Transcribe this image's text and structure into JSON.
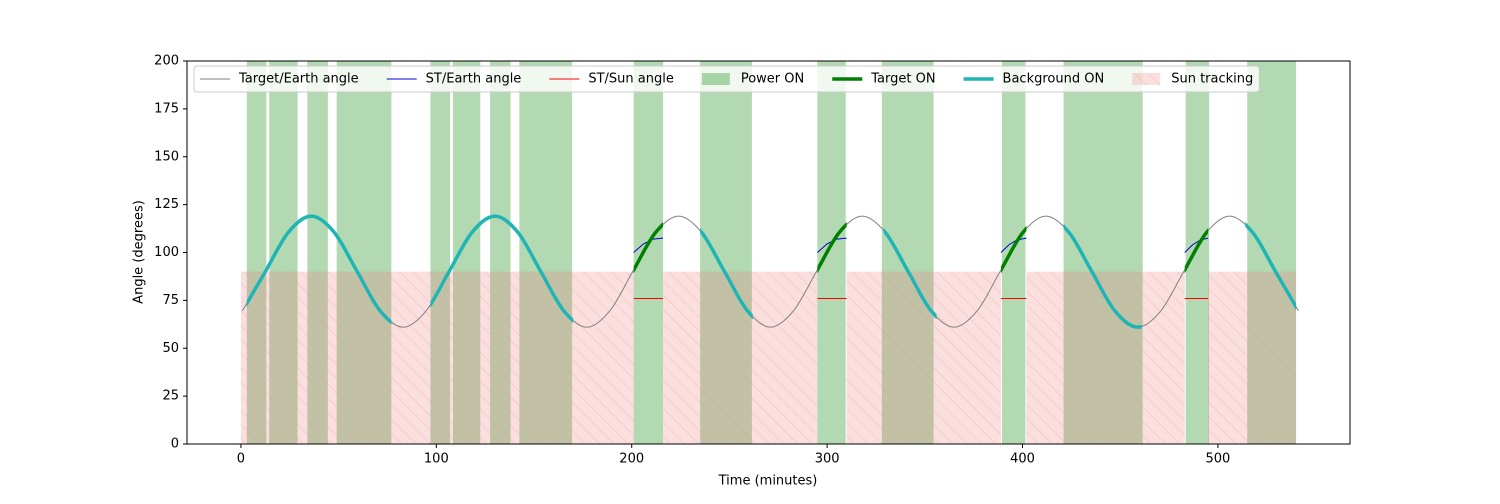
{
  "chart_data": {
    "type": "line",
    "xlabel": "Time (minutes)",
    "ylabel": "Angle (degrees)",
    "xlim": [
      -27.6,
      567.6
    ],
    "ylim": [
      0,
      200
    ],
    "xticks": [
      0,
      100,
      200,
      300,
      400,
      500
    ],
    "yticks": [
      0,
      25,
      50,
      75,
      100,
      125,
      150,
      175,
      200
    ],
    "legend": "upper center",
    "series": [
      {
        "name": "Target/Earth angle",
        "kind": "line",
        "color": "#808080",
        "x": [
          0.75,
          12.5,
          24.25,
          36,
          47.75,
          59.5,
          71.25,
          83,
          94.75,
          106.5,
          118.25,
          130,
          141.75,
          153.5,
          165.25,
          177,
          188.75,
          200.5,
          212.25,
          224,
          235.75,
          247.5,
          259.25,
          271,
          282.75,
          294.5,
          306.25,
          318,
          329.75,
          341.5,
          353.25,
          365,
          376.75,
          388.5,
          400.25,
          412,
          423.75,
          435.5,
          447.25,
          459,
          470.75,
          482.5,
          494.25,
          506,
          517.75,
          529.5,
          541.25
        ],
        "values": [
          69.5,
          90,
          110.5,
          119,
          110.5,
          90,
          69.5,
          61,
          69.5,
          90,
          110.5,
          119,
          110.5,
          90,
          69.5,
          61,
          69.5,
          90,
          110.5,
          119,
          110.5,
          90,
          69.5,
          61,
          69.5,
          90,
          110.5,
          119,
          110.5,
          90,
          69.5,
          61,
          69.5,
          90,
          110.5,
          119,
          110.5,
          90,
          69.5,
          61,
          69.5,
          90,
          110.5,
          119,
          110.5,
          90,
          69.5
        ]
      },
      {
        "name": "ST/Earth angle",
        "kind": "line",
        "color": "#0000cc",
        "x": [
          201,
          206,
          211,
          216,
          null,
          295,
          300,
          305,
          310,
          null,
          389,
          393,
          397,
          402,
          null,
          483,
          487,
          491,
          495
        ],
        "values": [
          100,
          104.5,
          107,
          107.5,
          null,
          100,
          104.5,
          107,
          107.5,
          null,
          100,
          104,
          106.5,
          107.5,
          null,
          100,
          104,
          106.5,
          107.5
        ]
      },
      {
        "name": "ST/Sun angle",
        "kind": "line",
        "color": "#ff0000",
        "x": [
          201,
          216,
          null,
          295,
          310,
          null,
          389,
          402,
          null,
          483,
          495
        ],
        "values": [
          76,
          76,
          null,
          76,
          76,
          null,
          76,
          76,
          null,
          76,
          76
        ]
      },
      {
        "name": "Power ON",
        "kind": "span",
        "color": "#008000",
        "intervals": [
          [
            3,
            13
          ],
          [
            14.5,
            29
          ],
          [
            34,
            44.5
          ],
          [
            49,
            77
          ],
          [
            97,
            107
          ],
          [
            108.5,
            122.5
          ],
          [
            127.5,
            138
          ],
          [
            142.5,
            169.5
          ],
          [
            201,
            216
          ],
          [
            235,
            261.5
          ],
          [
            295,
            309.5
          ],
          [
            328,
            354.5
          ],
          [
            389.5,
            401.5
          ],
          [
            421,
            461.5
          ],
          [
            483.5,
            495.5
          ],
          [
            515,
            540
          ]
        ]
      },
      {
        "name": "Target ON",
        "kind": "highlight",
        "color": "#008000",
        "intervals": [
          [
            201,
            216
          ],
          [
            295,
            310
          ],
          [
            389,
            402
          ],
          [
            483,
            495
          ]
        ]
      },
      {
        "name": "Background ON",
        "kind": "highlight",
        "color": "#1fb5b5",
        "intervals": [
          [
            3,
            77
          ],
          [
            97,
            170
          ],
          [
            235,
            262
          ],
          [
            329,
            356
          ],
          [
            421,
            461
          ],
          [
            514,
            540
          ]
        ]
      },
      {
        "name": "Sun tracking",
        "kind": "hatch",
        "color": "#f08080",
        "yrange": [
          0,
          90
        ],
        "intervals": [
          [
            0,
            201
          ],
          [
            216,
            295
          ],
          [
            310,
            389
          ],
          [
            402,
            483
          ],
          [
            495,
            540
          ]
        ]
      }
    ]
  }
}
